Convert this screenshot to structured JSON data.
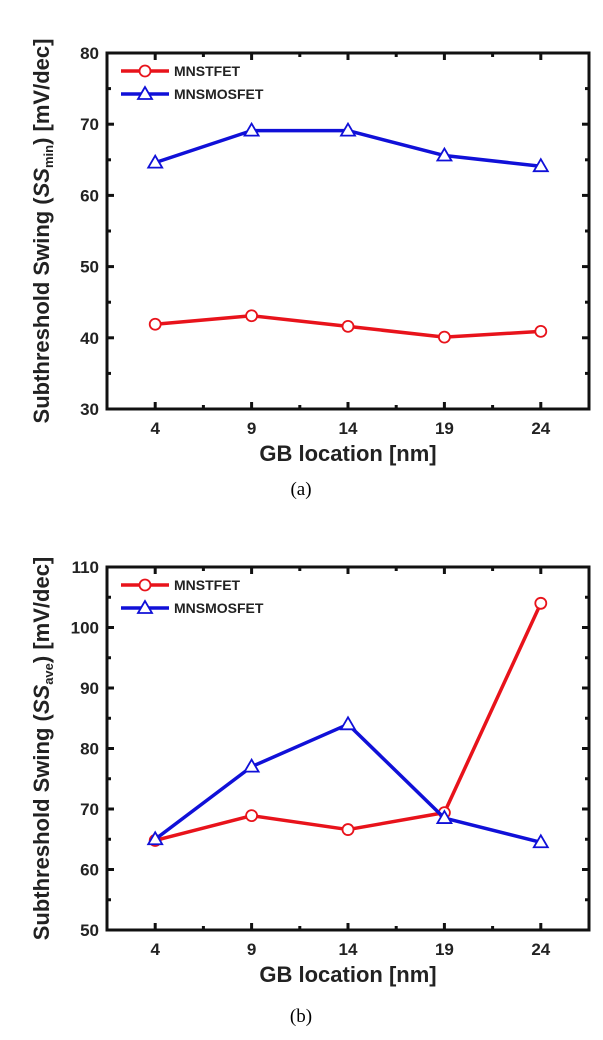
{
  "chart_data": [
    {
      "type": "line",
      "caption": "(a)",
      "xlabel": "GB location [nm]",
      "ylabel_prefix": "Subthreshold Swing (",
      "ylabel_ss": "SS",
      "ylabel_sub": "min",
      "ylabel_suffix": ") [mV/dec]",
      "x": [
        4,
        9,
        14,
        19,
        24
      ],
      "xticks": [
        "4",
        "9",
        "14",
        "19",
        "24"
      ],
      "xlim": [
        1.5,
        26.5
      ],
      "ylim": [
        30,
        80
      ],
      "yticks": [
        "30",
        "40",
        "50",
        "60",
        "70",
        "80"
      ],
      "legend_position": "top-left",
      "series": [
        {
          "name": "MNSTFET",
          "color": "#e8131b",
          "marker": "circle",
          "values": [
            41.9,
            43.1,
            41.6,
            40.1,
            40.9
          ]
        },
        {
          "name": "MNSMOSFET",
          "color": "#1010d8",
          "marker": "triangle",
          "values": [
            64.6,
            69.1,
            69.1,
            65.6,
            64.1
          ]
        }
      ]
    },
    {
      "type": "line",
      "caption": "(b)",
      "xlabel": "GB location [nm]",
      "ylabel_prefix": "Subthreshold Swing (",
      "ylabel_ss": "SS",
      "ylabel_sub": "ave",
      "ylabel_suffix": ") [mV/dec]",
      "x": [
        4,
        9,
        14,
        19,
        24
      ],
      "xticks": [
        "4",
        "9",
        "14",
        "19",
        "24"
      ],
      "xlim": [
        1.5,
        26.5
      ],
      "ylim": [
        50,
        110
      ],
      "yticks": [
        "50",
        "60",
        "70",
        "80",
        "90",
        "100",
        "110"
      ],
      "legend_position": "top-left",
      "series": [
        {
          "name": "MNSTFET",
          "color": "#e8131b",
          "marker": "circle",
          "values": [
            64.8,
            68.9,
            66.6,
            69.4,
            104.0
          ]
        },
        {
          "name": "MNSMOSFET",
          "color": "#1010d8",
          "marker": "triangle",
          "values": [
            65.0,
            77.0,
            84.0,
            68.5,
            64.5
          ]
        }
      ]
    }
  ]
}
